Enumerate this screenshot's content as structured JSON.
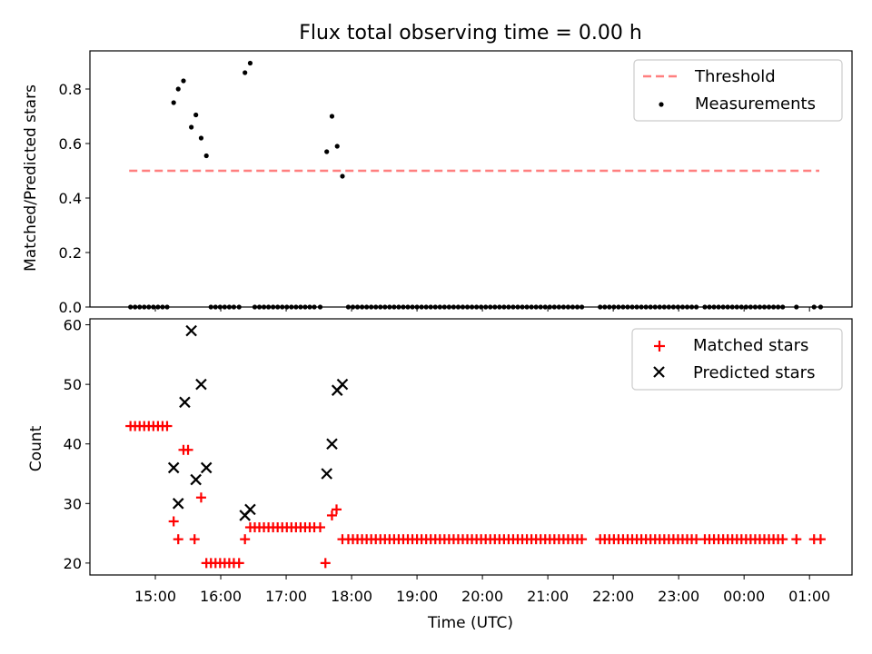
{
  "chart_data": [
    {
      "type": "scatter",
      "title": "Flux total observing time = 0.00 h",
      "xlabel": "",
      "ylabel": "Matched/Predicted stars",
      "ylim": [
        0,
        0.94
      ],
      "yticks": [
        0.0,
        0.2,
        0.4,
        0.6,
        0.8
      ],
      "ytick_labels": [
        "0.0",
        "0.2",
        "0.4",
        "0.6",
        "0.8"
      ],
      "legend": {
        "position": "upper right",
        "entries": [
          "Threshold",
          "Measurements"
        ]
      },
      "threshold": {
        "name": "Threshold",
        "value": 0.5,
        "x_start": 14.6,
        "x_end": 25.15,
        "color": "#ff7f7f"
      },
      "series": [
        {
          "name": "Measurements",
          "color": "#000000",
          "x": [
            14.62,
            14.69,
            14.76,
            14.83,
            14.9,
            14.97,
            15.04,
            15.11,
            15.18,
            15.28,
            15.35,
            15.43,
            15.55,
            15.62,
            15.7,
            15.78,
            15.85,
            15.92,
            15.99,
            16.06,
            16.13,
            16.2,
            16.28,
            16.37,
            16.45,
            16.52,
            16.59,
            16.66,
            16.73,
            16.8,
            16.87,
            16.94,
            17.01,
            17.08,
            17.15,
            17.22,
            17.29,
            17.36,
            17.43,
            17.52,
            17.62,
            17.7,
            17.78,
            17.86,
            17.95,
            18.02,
            18.09,
            18.16,
            18.23,
            18.3,
            18.37,
            18.44,
            18.51,
            18.58,
            18.65,
            18.72,
            18.79,
            18.86,
            18.93,
            19.0,
            19.07,
            19.14,
            19.21,
            19.28,
            19.35,
            19.42,
            19.49,
            19.56,
            19.63,
            19.7,
            19.77,
            19.84,
            19.91,
            19.98,
            20.05,
            20.12,
            20.19,
            20.26,
            20.33,
            20.4,
            20.47,
            20.54,
            20.61,
            20.68,
            20.75,
            20.82,
            20.89,
            20.96,
            21.03,
            21.1,
            21.17,
            21.24,
            21.31,
            21.38,
            21.45,
            21.52,
            21.8,
            21.87,
            21.94,
            22.01,
            22.08,
            22.15,
            22.22,
            22.29,
            22.36,
            22.43,
            22.5,
            22.57,
            22.64,
            22.71,
            22.78,
            22.85,
            22.92,
            22.99,
            23.06,
            23.13,
            23.2,
            23.27,
            23.4,
            23.47,
            23.54,
            23.61,
            23.68,
            23.75,
            23.82,
            23.89,
            23.96,
            24.03,
            24.1,
            24.17,
            24.24,
            24.31,
            24.38,
            24.45,
            24.52,
            24.59,
            24.8,
            25.07,
            25.17
          ],
          "y": [
            0,
            0,
            0,
            0,
            0,
            0,
            0,
            0,
            0,
            0.75,
            0.8,
            0.83,
            0.66,
            0.705,
            0.62,
            0.555,
            0,
            0,
            0,
            0,
            0,
            0,
            0,
            0.86,
            0.895,
            0,
            0,
            0,
            0,
            0,
            0,
            0,
            0,
            0,
            0,
            0,
            0,
            0,
            0,
            0,
            0.57,
            0.7,
            0.59,
            0.48,
            0,
            0,
            0,
            0,
            0,
            0,
            0,
            0,
            0,
            0,
            0,
            0,
            0,
            0,
            0,
            0,
            0,
            0,
            0,
            0,
            0,
            0,
            0,
            0,
            0,
            0,
            0,
            0,
            0,
            0,
            0,
            0,
            0,
            0,
            0,
            0,
            0,
            0,
            0,
            0,
            0,
            0,
            0,
            0,
            0,
            0,
            0,
            0,
            0,
            0,
            0,
            0,
            0,
            0,
            0,
            0,
            0,
            0,
            0,
            0,
            0,
            0,
            0,
            0,
            0,
            0,
            0,
            0,
            0,
            0,
            0,
            0,
            0,
            0,
            0,
            0,
            0,
            0,
            0,
            0,
            0,
            0,
            0,
            0,
            0,
            0,
            0,
            0,
            0,
            0,
            0,
            0,
            0,
            0,
            0
          ]
        }
      ]
    },
    {
      "type": "scatter",
      "title": "",
      "xlabel": "Time (UTC)",
      "ylabel": "Count",
      "ylim": [
        18,
        61
      ],
      "xlim": [
        14.0,
        25.65
      ],
      "yticks": [
        20,
        30,
        40,
        50,
        60
      ],
      "ytick_labels": [
        "20",
        "30",
        "40",
        "50",
        "60"
      ],
      "xticks": [
        15,
        16,
        17,
        18,
        19,
        20,
        21,
        22,
        23,
        24,
        25
      ],
      "xtick_labels": [
        "15:00",
        "16:00",
        "17:00",
        "18:00",
        "19:00",
        "20:00",
        "21:00",
        "22:00",
        "23:00",
        "00:00",
        "01:00"
      ],
      "legend": {
        "position": "upper right",
        "entries": [
          "Matched stars",
          "Predicted stars"
        ]
      },
      "series": [
        {
          "name": "Matched stars",
          "marker": "plus",
          "color": "#ff0000",
          "x": [
            14.62,
            14.69,
            14.76,
            14.83,
            14.9,
            14.97,
            15.04,
            15.11,
            15.18,
            15.28,
            15.35,
            15.43,
            15.5,
            15.6,
            15.7,
            15.78,
            15.85,
            15.92,
            15.99,
            16.06,
            16.13,
            16.2,
            16.28,
            16.37,
            16.45,
            16.52,
            16.59,
            16.66,
            16.73,
            16.8,
            16.87,
            16.94,
            17.01,
            17.08,
            17.15,
            17.22,
            17.29,
            17.36,
            17.43,
            17.52,
            17.6,
            17.7,
            17.77,
            17.86,
            17.95,
            18.02,
            18.09,
            18.16,
            18.23,
            18.3,
            18.37,
            18.44,
            18.51,
            18.58,
            18.65,
            18.72,
            18.79,
            18.86,
            18.93,
            19.0,
            19.07,
            19.14,
            19.21,
            19.28,
            19.35,
            19.42,
            19.49,
            19.56,
            19.63,
            19.7,
            19.77,
            19.84,
            19.91,
            19.98,
            20.05,
            20.12,
            20.19,
            20.26,
            20.33,
            20.4,
            20.47,
            20.54,
            20.61,
            20.68,
            20.75,
            20.82,
            20.89,
            20.96,
            21.03,
            21.1,
            21.17,
            21.24,
            21.31,
            21.38,
            21.45,
            21.52,
            21.8,
            21.87,
            21.94,
            22.01,
            22.08,
            22.15,
            22.22,
            22.29,
            22.36,
            22.43,
            22.5,
            22.57,
            22.64,
            22.71,
            22.78,
            22.85,
            22.92,
            22.99,
            23.06,
            23.13,
            23.2,
            23.27,
            23.4,
            23.47,
            23.54,
            23.61,
            23.68,
            23.75,
            23.82,
            23.89,
            23.96,
            24.03,
            24.1,
            24.17,
            24.24,
            24.31,
            24.38,
            24.45,
            24.52,
            24.59,
            24.8,
            25.07,
            25.17
          ],
          "y": [
            43,
            43,
            43,
            43,
            43,
            43,
            43,
            43,
            43,
            27,
            24,
            39,
            39,
            24,
            31,
            20,
            20,
            20,
            20,
            20,
            20,
            20,
            20,
            24,
            26,
            26,
            26,
            26,
            26,
            26,
            26,
            26,
            26,
            26,
            26,
            26,
            26,
            26,
            26,
            26,
            20,
            28,
            29,
            24,
            24,
            24,
            24,
            24,
            24,
            24,
            24,
            24,
            24,
            24,
            24,
            24,
            24,
            24,
            24,
            24,
            24,
            24,
            24,
            24,
            24,
            24,
            24,
            24,
            24,
            24,
            24,
            24,
            24,
            24,
            24,
            24,
            24,
            24,
            24,
            24,
            24,
            24,
            24,
            24,
            24,
            24,
            24,
            24,
            24,
            24,
            24,
            24,
            24,
            24,
            24,
            24,
            24,
            24,
            24,
            24,
            24,
            24,
            24,
            24,
            24,
            24,
            24,
            24,
            24,
            24,
            24,
            24,
            24,
            24,
            24,
            24,
            24,
            24,
            24,
            24,
            24,
            24,
            24,
            24,
            24,
            24,
            24,
            24,
            24,
            24,
            24,
            24,
            24,
            24,
            24,
            24,
            24,
            24,
            24
          ]
        },
        {
          "name": "Predicted stars",
          "marker": "x",
          "color": "#000000",
          "x": [
            15.28,
            15.35,
            15.45,
            15.55,
            15.62,
            15.7,
            15.78,
            16.37,
            16.45,
            17.62,
            17.7,
            17.78,
            17.86
          ],
          "y": [
            36,
            30,
            47,
            59,
            34,
            50,
            36,
            28,
            29,
            35,
            40,
            49,
            50
          ]
        }
      ]
    }
  ]
}
